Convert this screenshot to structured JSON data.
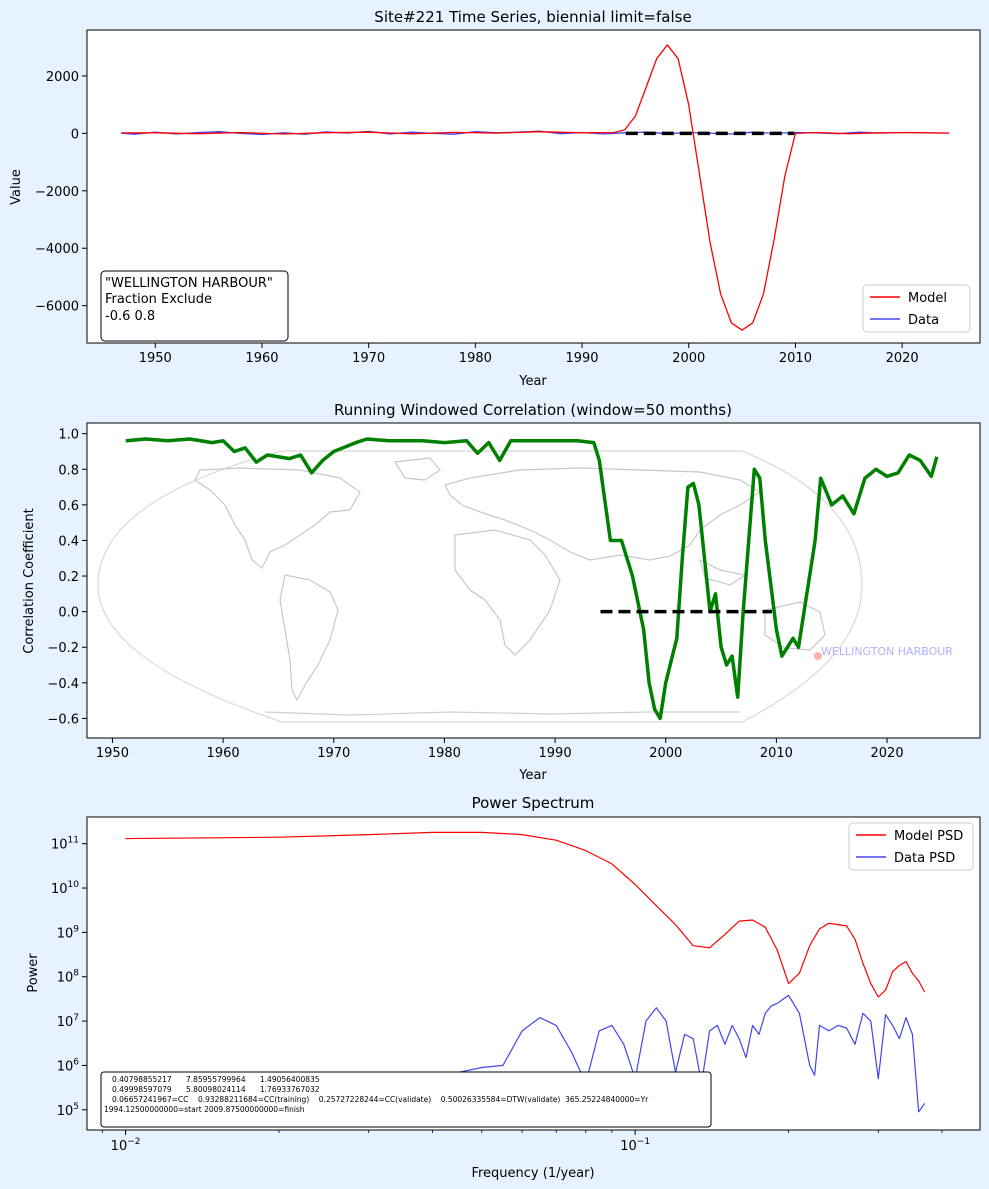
{
  "chart_data": [
    {
      "type": "line",
      "title": "Site#221 Time Series, biennial limit=false",
      "xlabel": "Year",
      "ylabel": "Value",
      "xlim": [
        1943.6,
        2027.3
      ],
      "ylim": [
        -7300,
        3600
      ],
      "xticks": [
        1950,
        1960,
        1970,
        1980,
        1990,
        2000,
        2010,
        2020
      ],
      "yticks": [
        2000,
        0,
        -2000,
        -4000,
        -6000
      ],
      "ytick_labels": [
        "2000",
        "0",
        "−2000",
        "−4000",
        "−6000"
      ],
      "grid": false,
      "legend": "bottom-right",
      "annotation": [
        "\"WELLINGTON HARBOUR\"",
        "Fraction Exclude",
        "-0.6 0.8"
      ],
      "reference_line": {
        "x": [
          1994.1,
          2009.9
        ],
        "y": 0,
        "style": "dashed",
        "color": "#000000"
      },
      "series": [
        {
          "name": "Model",
          "color": "#ff0000",
          "x": [
            1946.8,
            1950,
            1954,
            1958,
            1962,
            1966,
            1970,
            1974,
            1978,
            1982,
            1986,
            1990,
            1993,
            1994,
            1995,
            1996,
            1997,
            1998,
            1999,
            2000,
            2001,
            2002,
            2003,
            2004,
            2005,
            2006,
            2007,
            2008,
            2009,
            2010,
            2012,
            2015,
            2018,
            2021,
            2024.4
          ],
          "y": [
            15,
            20,
            -10,
            30,
            -20,
            25,
            40,
            -15,
            35,
            10,
            60,
            20,
            30,
            120,
            600,
            1600,
            2600,
            3080,
            2600,
            1000,
            -1400,
            -3800,
            -5600,
            -6600,
            -6850,
            -6600,
            -5600,
            -3700,
            -1500,
            0,
            30,
            -10,
            20,
            30,
            10
          ]
        },
        {
          "name": "Data",
          "color": "#4444ee",
          "x": [
            1946.8,
            1948,
            1950,
            1952,
            1954,
            1956,
            1958,
            1960,
            1962,
            1964,
            1966,
            1968,
            1970,
            1972,
            1974,
            1976,
            1978,
            1980,
            1982,
            1984,
            1986,
            1988,
            1990,
            1992,
            1994,
            1996,
            1998,
            2000,
            2002,
            2004,
            2006,
            2008,
            2010,
            2012,
            2014,
            2016,
            2018,
            2020,
            2022,
            2024.4
          ],
          "y": [
            10,
            -30,
            40,
            -20,
            30,
            60,
            0,
            -40,
            20,
            -30,
            50,
            10,
            70,
            -20,
            40,
            0,
            -30,
            60,
            20,
            40,
            80,
            -10,
            30,
            -20,
            20,
            40,
            -10,
            30,
            10,
            -20,
            40,
            0,
            30,
            20,
            -10,
            40,
            10,
            30,
            20,
            10
          ]
        }
      ]
    },
    {
      "type": "line",
      "title": "Running Windowed Correlation (window=50 months)",
      "xlabel": "Year",
      "ylabel": "Correlation Coefficient",
      "xlim": [
        1947.7,
        2028.4
      ],
      "ylim": [
        -0.71,
        1.06
      ],
      "xticks": [
        1950,
        1960,
        1970,
        1980,
        1990,
        2000,
        2010,
        2020
      ],
      "yticks": [
        1.0,
        0.8,
        0.6,
        0.4,
        0.2,
        0.0,
        -0.2,
        -0.4,
        -0.6
      ],
      "ytick_labels": [
        "1.0",
        "0.8",
        "0.6",
        "0.4",
        "0.2",
        "0.0",
        "−0.2",
        "−0.4",
        "−0.6"
      ],
      "grid": false,
      "background_map_label": "WELLINGTON HARBOUR",
      "reference_line": {
        "x": [
          1994.1,
          2009.6
        ],
        "y": 0,
        "style": "dashed",
        "color": "#000000"
      },
      "series": [
        {
          "color": "#008000",
          "x": [
            1951.2,
            1953,
            1955,
            1957,
            1959,
            1960,
            1961,
            1962,
            1963,
            1964,
            1966,
            1967,
            1968,
            1969,
            1970,
            1972,
            1973,
            1975,
            1978,
            1980,
            1982,
            1983,
            1984,
            1985,
            1986,
            1988,
            1990,
            1992,
            1993.5,
            1994,
            1995,
            1996,
            1997,
            1998,
            1998.5,
            1999,
            1999.5,
            2000,
            2001,
            2001.5,
            2002,
            2002.5,
            2003,
            2003.5,
            2004,
            2004.5,
            2005,
            2005.5,
            2006,
            2006.5,
            2007,
            2008,
            2008.5,
            2009,
            2010,
            2010.5,
            2011,
            2011.5,
            2012,
            2013,
            2013.5,
            2014,
            2015,
            2016,
            2017,
            2018,
            2019,
            2020,
            2021,
            2022,
            2023,
            2024,
            2024.5
          ],
          "y": [
            0.96,
            0.97,
            0.96,
            0.97,
            0.95,
            0.96,
            0.9,
            0.92,
            0.84,
            0.88,
            0.86,
            0.88,
            0.78,
            0.85,
            0.9,
            0.95,
            0.97,
            0.96,
            0.96,
            0.95,
            0.96,
            0.89,
            0.95,
            0.85,
            0.96,
            0.96,
            0.96,
            0.96,
            0.95,
            0.85,
            0.4,
            0.4,
            0.2,
            -0.1,
            -0.4,
            -0.55,
            -0.6,
            -0.4,
            -0.15,
            0.3,
            0.7,
            0.72,
            0.6,
            0.3,
            0.0,
            0.1,
            -0.2,
            -0.3,
            -0.25,
            -0.48,
            0.0,
            0.8,
            0.75,
            0.4,
            -0.1,
            -0.25,
            -0.2,
            -0.15,
            -0.2,
            0.2,
            0.4,
            0.75,
            0.6,
            0.65,
            0.55,
            0.75,
            0.8,
            0.76,
            0.78,
            0.88,
            0.85,
            0.76,
            0.87
          ]
        }
      ]
    },
    {
      "type": "line",
      "title": "Power Spectrum",
      "xlabel": "Frequency (1/year)",
      "ylabel": "Power",
      "xscale": "log",
      "yscale": "log",
      "xlim": [
        0.0084,
        0.475
      ],
      "ylim": [
        35000,
        400000000000
      ],
      "xticks": [
        0.01,
        0.1
      ],
      "yticks": [
        100000,
        1000000,
        10000000,
        100000000,
        1000000000,
        10000000000,
        100000000000
      ],
      "ytick_exponents": [
        "5",
        "6",
        "7",
        "8",
        "9",
        "10",
        "11"
      ],
      "grid": false,
      "legend": "top-right",
      "annotation": [
        "0.40798855217      7.85955799964      1.49056400835",
        "0.49998597079      5.80098024114      1.76933767032",
        "0.06657241967=CC    0.93288211684=CC(training)    0.25727228244=CC(validate)    0.50026335584=DTW(validate)  365.25224840000=Yr",
        "1994.12500000000=start 2009.87500000000=finish"
      ],
      "series": [
        {
          "name": "Model PSD",
          "color": "#ff0000",
          "x": [
            0.01,
            0.02,
            0.03,
            0.04,
            0.05,
            0.06,
            0.07,
            0.08,
            0.09,
            0.1,
            0.11,
            0.12,
            0.13,
            0.14,
            0.15,
            0.16,
            0.17,
            0.18,
            0.19,
            0.2,
            0.21,
            0.22,
            0.23,
            0.24,
            0.25,
            0.26,
            0.27,
            0.28,
            0.29,
            0.3,
            0.31,
            0.32,
            0.33,
            0.34,
            0.35,
            0.36,
            0.37
          ],
          "y": [
            130000000000.0,
            140000000000.0,
            160000000000.0,
            180000000000.0,
            180000000000.0,
            160000000000.0,
            120000000000.0,
            70000000000.0,
            35000000000.0,
            12000000000.0,
            4000000000.0,
            1500000000.0,
            500000000.0,
            450000000.0,
            900000000.0,
            1800000000.0,
            1900000000.0,
            1300000000.0,
            400000000.0,
            70000000.0,
            120000000.0,
            500000000.0,
            1200000000.0,
            1600000000.0,
            1500000000.0,
            1400000000.0,
            700000000.0,
            200000000.0,
            70000000.0,
            35000000.0,
            50000000.0,
            130000000.0,
            180000000.0,
            220000000.0,
            120000000.0,
            80000000.0,
            45000000.0
          ]
        },
        {
          "name": "Data PSD",
          "color": "#4444ee",
          "x": [
            0.01,
            0.015,
            0.02,
            0.025,
            0.03,
            0.035,
            0.04,
            0.045,
            0.05,
            0.055,
            0.06,
            0.065,
            0.07,
            0.075,
            0.08,
            0.085,
            0.09,
            0.095,
            0.1,
            0.105,
            0.11,
            0.115,
            0.12,
            0.125,
            0.13,
            0.135,
            0.14,
            0.145,
            0.15,
            0.155,
            0.16,
            0.165,
            0.17,
            0.175,
            0.18,
            0.185,
            0.19,
            0.2,
            0.21,
            0.22,
            0.225,
            0.23,
            0.24,
            0.25,
            0.26,
            0.27,
            0.28,
            0.29,
            0.3,
            0.31,
            0.32,
            0.33,
            0.34,
            0.35,
            0.36,
            0.37
          ],
          "y": [
            700000,
            650000,
            600000,
            450000,
            350000,
            600000,
            500000,
            700000,
            900000,
            1000000,
            6000000,
            12000000,
            8000000,
            2000000,
            400000,
            6000000,
            8000000,
            3000000,
            500000,
            10000000,
            20000000,
            10000000,
            700000,
            5000000,
            4000000,
            400000,
            6000000,
            8000000,
            3000000,
            8000000,
            4000000,
            1500000,
            8000000,
            5000000,
            15000000,
            22000000,
            25000000,
            38000000,
            15000000,
            1000000,
            600000,
            8000000,
            6000000,
            8000000,
            7000000,
            3000000,
            15000000,
            10000000,
            500000,
            14000000,
            8000000,
            4000000,
            12000000,
            5000000,
            90000,
            140000
          ]
        }
      ]
    }
  ]
}
